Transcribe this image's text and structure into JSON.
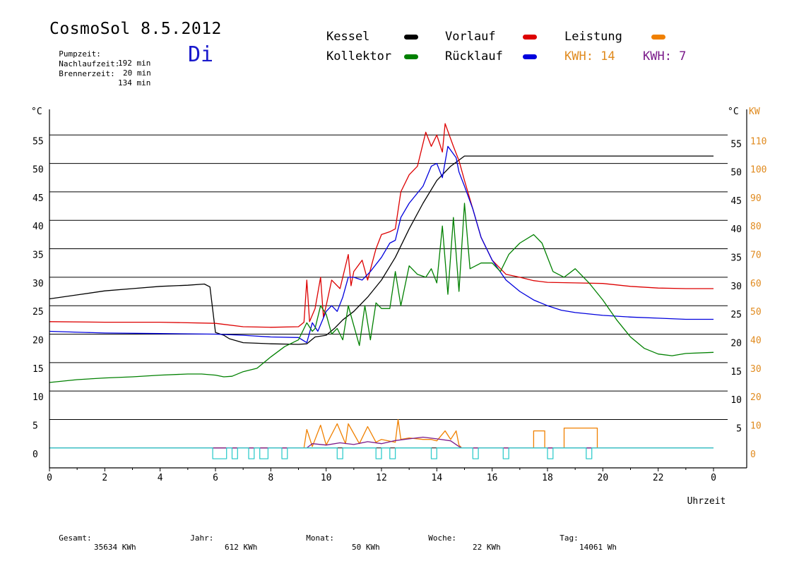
{
  "header": {
    "title": "CosmoSol 8.5.2012",
    "weekday": "Di",
    "stats": [
      {
        "label": "Pumpzeit:",
        "value": "192 min"
      },
      {
        "label": "Nachlaufzeit:",
        "value": "20 min"
      },
      {
        "label": "Brennerzeit:",
        "value": "134 min"
      }
    ]
  },
  "legend": {
    "kessel": {
      "label": "Kessel",
      "color": "#000000"
    },
    "vorlauf": {
      "label": "Vorlauf",
      "color": "#dd0000"
    },
    "leistung": {
      "label": "Leistung",
      "color": "#f08000"
    },
    "kollektor": {
      "label": "Kollektor",
      "color": "#008000"
    },
    "ruecklauf": {
      "label": "Rücklauf",
      "color": "#0000dd"
    },
    "kwh_orange": {
      "label": "KWH: 14",
      "color": "#e08a1e"
    },
    "kwh_purple": {
      "label": "KWH: 7",
      "color": "#7a1a8a"
    }
  },
  "footer": [
    {
      "label": "Gesamt:",
      "value": "35634 KWh"
    },
    {
      "label": "Jahr:",
      "value": "612 KWh"
    },
    {
      "label": "Monat:",
      "value": "50 KWh"
    },
    {
      "label": "Woche:",
      "value": "22 KWh"
    },
    {
      "label": "Tag:",
      "value": "14061 Wh"
    }
  ],
  "chart_data": {
    "type": "line",
    "xlabel": "Uhrzeit",
    "ylabel_left": "°C",
    "ylabel_right_temp": "°C",
    "ylabel_right_power": "KW",
    "xlim": [
      0,
      24
    ],
    "ylim": [
      -3.5,
      59.5
    ],
    "x_ticks": [
      "0",
      "2",
      "4",
      "6",
      "8",
      "10",
      "12",
      "14",
      "16",
      "18",
      "20",
      "22",
      "0"
    ],
    "y_ticks": [
      0,
      5,
      10,
      15,
      20,
      25,
      30,
      35,
      40,
      45,
      50,
      55
    ],
    "y2_ticks": [
      "0",
      "10",
      "20",
      "30",
      "40",
      "50",
      "60",
      "70",
      "80",
      "90",
      "100",
      "110"
    ],
    "grid": true,
    "series": [
      {
        "name": "Kessel",
        "color": "#000000",
        "points": [
          [
            0,
            26.2
          ],
          [
            1,
            26.9
          ],
          [
            2,
            27.6
          ],
          [
            3,
            28
          ],
          [
            4,
            28.4
          ],
          [
            5,
            28.6
          ],
          [
            5.6,
            28.8
          ],
          [
            5.8,
            28.3
          ],
          [
            6.0,
            20.3
          ],
          [
            6.3,
            19.8
          ],
          [
            6.5,
            19.2
          ],
          [
            7,
            18.5
          ],
          [
            7.5,
            18.4
          ],
          [
            8,
            18.3
          ],
          [
            9,
            18.2
          ],
          [
            9.3,
            18.3
          ],
          [
            9.6,
            19.5
          ],
          [
            10,
            19.8
          ],
          [
            10.3,
            21
          ],
          [
            10.6,
            22.5
          ],
          [
            11,
            24
          ],
          [
            11.5,
            26.5
          ],
          [
            12,
            29.5
          ],
          [
            12.5,
            33.5
          ],
          [
            13,
            38.5
          ],
          [
            13.5,
            43
          ],
          [
            14,
            47
          ],
          [
            14.5,
            49.5
          ],
          [
            15,
            51.3
          ],
          [
            17,
            51.3
          ],
          [
            20,
            51.3
          ],
          [
            24,
            51.3
          ]
        ]
      },
      {
        "name": "Vorlauf",
        "color": "#dd0000",
        "points": [
          [
            0,
            22.2
          ],
          [
            2,
            22.1
          ],
          [
            4,
            22.1
          ],
          [
            6,
            21.9
          ],
          [
            7,
            21.3
          ],
          [
            8,
            21.2
          ],
          [
            9,
            21.3
          ],
          [
            9.2,
            22.1
          ],
          [
            9.3,
            29.5
          ],
          [
            9.4,
            22.2
          ],
          [
            9.6,
            24.5
          ],
          [
            9.8,
            30
          ],
          [
            9.9,
            23
          ],
          [
            10,
            25
          ],
          [
            10.2,
            29.5
          ],
          [
            10.5,
            28
          ],
          [
            10.8,
            34
          ],
          [
            10.9,
            28.5
          ],
          [
            11,
            31
          ],
          [
            11.3,
            33
          ],
          [
            11.5,
            29.5
          ],
          [
            11.8,
            35
          ],
          [
            12,
            37.5
          ],
          [
            12.3,
            38
          ],
          [
            12.5,
            38.5
          ],
          [
            12.7,
            45
          ],
          [
            13,
            48
          ],
          [
            13.3,
            49.5
          ],
          [
            13.6,
            55.5
          ],
          [
            13.8,
            53
          ],
          [
            14,
            55
          ],
          [
            14.2,
            52
          ],
          [
            14.3,
            57
          ],
          [
            14.6,
            53
          ],
          [
            14.8,
            50.5
          ],
          [
            15,
            47
          ],
          [
            15.3,
            42
          ],
          [
            15.6,
            37
          ],
          [
            16,
            33
          ],
          [
            16.5,
            30.5
          ],
          [
            17,
            30
          ],
          [
            17.5,
            29.4
          ],
          [
            18,
            29.1
          ],
          [
            19,
            29
          ],
          [
            20,
            28.9
          ],
          [
            21,
            28.4
          ],
          [
            22,
            28.1
          ],
          [
            23,
            28
          ],
          [
            24,
            28
          ]
        ]
      },
      {
        "name": "Rücklauf",
        "color": "#0000dd",
        "points": [
          [
            0,
            20.5
          ],
          [
            1.3,
            20.3
          ],
          [
            2,
            20.2
          ],
          [
            4,
            20.1
          ],
          [
            6,
            20
          ],
          [
            7,
            19.8
          ],
          [
            8,
            19.5
          ],
          [
            9,
            19.4
          ],
          [
            9.3,
            18.5
          ],
          [
            9.5,
            22
          ],
          [
            9.7,
            20.5
          ],
          [
            10,
            24
          ],
          [
            10.2,
            25
          ],
          [
            10.4,
            24
          ],
          [
            10.6,
            26.5
          ],
          [
            10.8,
            30
          ],
          [
            11,
            30
          ],
          [
            11.3,
            29.5
          ],
          [
            11.6,
            31
          ],
          [
            12,
            33.5
          ],
          [
            12.3,
            36
          ],
          [
            12.5,
            36.5
          ],
          [
            12.7,
            40.5
          ],
          [
            13,
            43
          ],
          [
            13.5,
            46
          ],
          [
            13.8,
            49.5
          ],
          [
            14,
            50
          ],
          [
            14.2,
            47.5
          ],
          [
            14.4,
            53
          ],
          [
            14.7,
            51
          ],
          [
            14.8,
            48.5
          ],
          [
            15,
            46
          ],
          [
            15.3,
            42
          ],
          [
            15.6,
            37
          ],
          [
            16,
            33
          ],
          [
            16.5,
            29.5
          ],
          [
            17,
            27.5
          ],
          [
            17.5,
            26
          ],
          [
            18,
            25
          ],
          [
            18.5,
            24.2
          ],
          [
            19,
            23.8
          ],
          [
            20,
            23.3
          ],
          [
            21,
            23
          ],
          [
            22,
            22.8
          ],
          [
            23,
            22.6
          ],
          [
            24,
            22.6
          ]
        ]
      },
      {
        "name": "Kollektor",
        "color": "#008000",
        "points": [
          [
            0,
            11.5
          ],
          [
            1,
            12
          ],
          [
            2,
            12.3
          ],
          [
            3,
            12.5
          ],
          [
            4,
            12.8
          ],
          [
            5,
            13
          ],
          [
            5.5,
            13
          ],
          [
            6,
            12.8
          ],
          [
            6.3,
            12.5
          ],
          [
            6.6,
            12.6
          ],
          [
            7,
            13.4
          ],
          [
            7.5,
            14
          ],
          [
            8,
            16
          ],
          [
            8.5,
            17.8
          ],
          [
            9,
            19
          ],
          [
            9.3,
            22
          ],
          [
            9.5,
            20.5
          ],
          [
            9.6,
            21
          ],
          [
            9.8,
            25
          ],
          [
            10,
            23.5
          ],
          [
            10.2,
            20
          ],
          [
            10.4,
            21
          ],
          [
            10.6,
            19
          ],
          [
            10.8,
            25
          ],
          [
            11,
            21.5
          ],
          [
            11.2,
            18
          ],
          [
            11.4,
            25
          ],
          [
            11.6,
            19
          ],
          [
            11.8,
            25.5
          ],
          [
            12,
            24.5
          ],
          [
            12.3,
            24.5
          ],
          [
            12.5,
            31
          ],
          [
            12.7,
            25
          ],
          [
            13,
            32
          ],
          [
            13.3,
            30.5
          ],
          [
            13.6,
            30
          ],
          [
            13.8,
            31.5
          ],
          [
            14,
            29
          ],
          [
            14.2,
            39
          ],
          [
            14.4,
            27
          ],
          [
            14.6,
            40.5
          ],
          [
            14.8,
            27.5
          ],
          [
            15,
            43
          ],
          [
            15.2,
            31.5
          ],
          [
            15.6,
            32.5
          ],
          [
            16,
            32.5
          ],
          [
            16.3,
            31
          ],
          [
            16.6,
            34
          ],
          [
            17,
            36
          ],
          [
            17.5,
            37.5
          ],
          [
            17.8,
            36
          ],
          [
            18.2,
            31
          ],
          [
            18.6,
            30
          ],
          [
            19,
            31.5
          ],
          [
            19.5,
            29
          ],
          [
            20,
            26
          ],
          [
            20.5,
            22.5
          ],
          [
            21,
            19.5
          ],
          [
            21.5,
            17.5
          ],
          [
            22,
            16.5
          ],
          [
            22.5,
            16.2
          ],
          [
            23,
            16.6
          ],
          [
            24,
            16.8
          ]
        ]
      },
      {
        "name": "Leistung",
        "color": "#f08000",
        "axis": "right",
        "points": [
          [
            0,
            0
          ],
          [
            9.2,
            0
          ],
          [
            9.3,
            6.5
          ],
          [
            9.5,
            0.5
          ],
          [
            9.8,
            8
          ],
          [
            10,
            1
          ],
          [
            10.4,
            8.5
          ],
          [
            10.7,
            1.5
          ],
          [
            10.8,
            8.5
          ],
          [
            11.2,
            1.5
          ],
          [
            11.5,
            7.5
          ],
          [
            11.8,
            2
          ],
          [
            12,
            3
          ],
          [
            12.5,
            2
          ],
          [
            12.6,
            10
          ],
          [
            12.7,
            3
          ],
          [
            13,
            3.5
          ],
          [
            13.5,
            3
          ],
          [
            13.8,
            3
          ],
          [
            14,
            2.5
          ],
          [
            14.3,
            6
          ],
          [
            14.5,
            3
          ],
          [
            14.7,
            6
          ],
          [
            14.8,
            1
          ],
          [
            14.9,
            0
          ],
          [
            17.5,
            0
          ],
          [
            17.5,
            6
          ],
          [
            17.9,
            6
          ],
          [
            17.9,
            0
          ],
          [
            18.6,
            0
          ],
          [
            18.6,
            7
          ],
          [
            19.8,
            7
          ],
          [
            19.8,
            0
          ],
          [
            24,
            0
          ]
        ]
      },
      {
        "name": "KWH 7",
        "color": "#7a1a8a",
        "axis": "right",
        "points": [
          [
            0,
            0
          ],
          [
            9.3,
            0
          ],
          [
            9.5,
            1.5
          ],
          [
            10,
            1
          ],
          [
            10.5,
            1.8
          ],
          [
            11,
            1.2
          ],
          [
            11.5,
            2.2
          ],
          [
            12,
            1.5
          ],
          [
            12.5,
            2.6
          ],
          [
            13,
            3.2
          ],
          [
            13.5,
            3.8
          ],
          [
            14,
            3.2
          ],
          [
            14.5,
            2.5
          ],
          [
            14.8,
            0.5
          ],
          [
            14.9,
            0
          ],
          [
            24,
            0
          ]
        ]
      },
      {
        "name": "Pumpe",
        "color": "#33cccc",
        "points": [
          [
            0,
            0
          ],
          [
            5.9,
            0
          ],
          [
            5.9,
            -1.9
          ],
          [
            6.4,
            -1.9
          ],
          [
            6.4,
            0
          ],
          [
            6.6,
            0
          ],
          [
            6.6,
            -1.9
          ],
          [
            6.8,
            -1.9
          ],
          [
            6.8,
            0
          ],
          [
            7.2,
            0
          ],
          [
            7.2,
            -1.9
          ],
          [
            7.4,
            -1.9
          ],
          [
            7.4,
            0
          ],
          [
            7.6,
            0
          ],
          [
            7.6,
            -1.9
          ],
          [
            7.9,
            -1.9
          ],
          [
            7.9,
            0
          ],
          [
            8.4,
            0
          ],
          [
            8.4,
            -1.9
          ],
          [
            8.6,
            -1.9
          ],
          [
            8.6,
            0
          ],
          [
            10.4,
            0
          ],
          [
            10.4,
            -1.9
          ],
          [
            10.6,
            -1.9
          ],
          [
            10.6,
            0
          ],
          [
            11.8,
            0
          ],
          [
            11.8,
            -1.9
          ],
          [
            12,
            -1.9
          ],
          [
            12,
            0
          ],
          [
            12.3,
            0
          ],
          [
            12.3,
            -1.9
          ],
          [
            12.5,
            -1.9
          ],
          [
            12.5,
            0
          ],
          [
            13.8,
            0
          ],
          [
            13.8,
            -1.9
          ],
          [
            14,
            -1.9
          ],
          [
            14,
            0
          ],
          [
            15.3,
            0
          ],
          [
            15.3,
            -1.9
          ],
          [
            15.5,
            -1.9
          ],
          [
            15.5,
            0
          ],
          [
            16.4,
            0
          ],
          [
            16.4,
            -1.9
          ],
          [
            16.6,
            -1.9
          ],
          [
            16.6,
            0
          ],
          [
            18,
            0
          ],
          [
            18,
            -1.9
          ],
          [
            18.2,
            -1.9
          ],
          [
            18.2,
            0
          ],
          [
            19.4,
            0
          ],
          [
            19.4,
            -1.9
          ],
          [
            19.6,
            -1.9
          ],
          [
            19.6,
            0
          ],
          [
            24,
            0
          ]
        ]
      }
    ]
  }
}
